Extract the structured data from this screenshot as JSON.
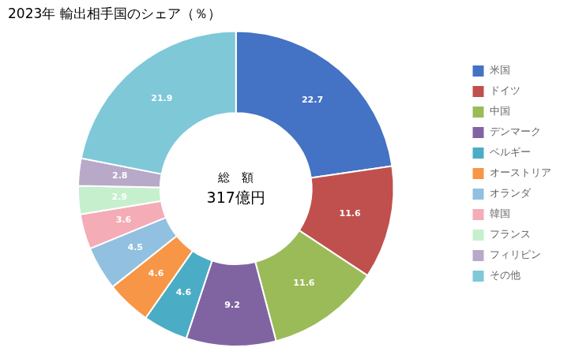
{
  "chart_data": {
    "type": "doughnut",
    "title": "2023年 輸出相手国のシェア（％）",
    "annotations": [
      "総　額",
      "317億円"
    ],
    "categories": [
      "米国",
      "ドイツ",
      "中国",
      "デンマーク",
      "ベルギー",
      "オーストリア",
      "オランダ",
      "韓国",
      "フランス",
      "フィリピン",
      "その他"
    ],
    "values": [
      22.7,
      11.6,
      11.6,
      9.2,
      4.6,
      4.6,
      4.5,
      3.6,
      2.9,
      2.8,
      21.9
    ],
    "colors": [
      "#4472C4",
      "#C0504D",
      "#9BBB59",
      "#8064A2",
      "#4BACC6",
      "#F79646",
      "#92C0E0",
      "#F4ACB7",
      "#C6EFCE",
      "#B8A9C9",
      "#7EC8D8"
    ],
    "data_labels": true,
    "legend": "right"
  }
}
